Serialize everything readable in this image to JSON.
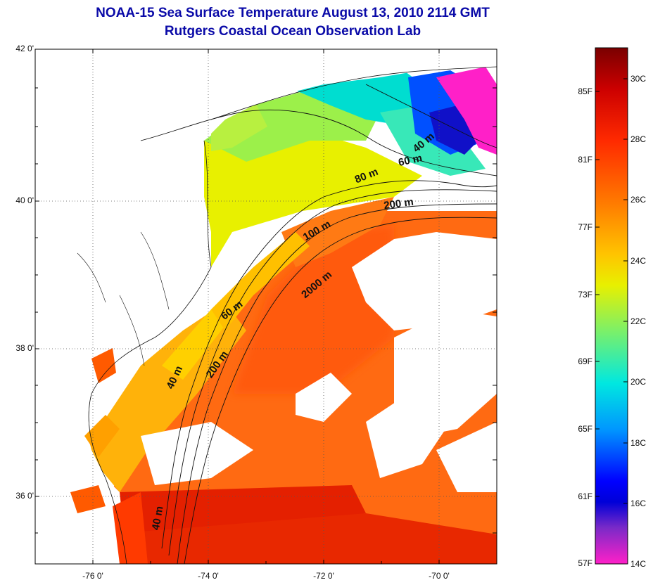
{
  "title_line1": "NOAA-15 Sea Surface Temperature August 13, 2010 2114 GMT",
  "title_line2": "Rutgers Coastal Ocean Observation Lab",
  "lat_labels": [
    "42 0'",
    "40 0'",
    "38 0'",
    "36 0'"
  ],
  "lon_labels": [
    "-76 0'",
    "-74 0'",
    "-72 0'",
    "-70 0'"
  ],
  "contour_labels": [
    "40 m",
    "60 m",
    "80 m",
    "200 m",
    "100 m",
    "2000 m",
    "60 m",
    "200 m",
    "40 m",
    "40 m"
  ],
  "colorbar": {
    "fahrenheit": [
      "85F",
      "81F",
      "77F",
      "73F",
      "69F",
      "65F",
      "61F",
      "57F"
    ],
    "celsius": [
      "30C",
      "28C",
      "26C",
      "24C",
      "22C",
      "20C",
      "18C",
      "16C",
      "14C"
    ],
    "colors": [
      "#7a0000",
      "#cc0000",
      "#ff2a00",
      "#ff7a00",
      "#ffc400",
      "#e8f000",
      "#7af06a",
      "#00e8e0",
      "#0096ff",
      "#0000ff",
      "#0000d8",
      "#7a2ac8",
      "#ff20c8"
    ]
  }
}
